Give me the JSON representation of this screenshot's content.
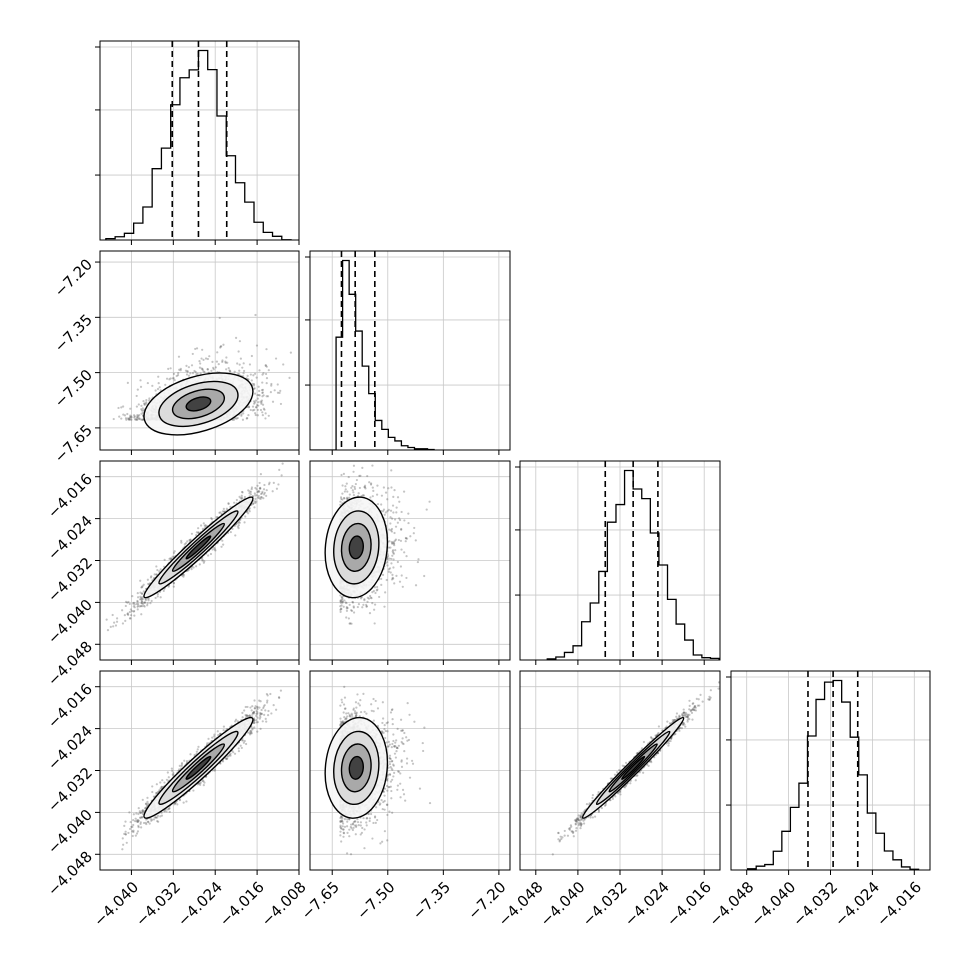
{
  "chart_data": {
    "type": "corner",
    "parameters": 4,
    "grid": true,
    "line_color": "#000000",
    "point_color": "#555555",
    "quantile_line_style": "dashed",
    "axes": [
      {
        "range": [
          -4.046,
          -4.008
        ],
        "ticks": [
          -4.04,
          -4.032,
          -4.024,
          -4.016,
          -4.008
        ],
        "tick_labels": [
          "−4.040",
          "−4.032",
          "−4.024",
          "−4.016",
          "−4.008"
        ]
      },
      {
        "range": [
          -7.71,
          -7.17
        ],
        "ticks": [
          -7.65,
          -7.5,
          -7.35,
          -7.2
        ],
        "tick_labels": [
          "−7.65",
          "−7.50",
          "−7.35",
          "−7.20"
        ]
      },
      {
        "range": [
          -4.051,
          -4.013
        ],
        "ticks": [
          -4.048,
          -4.04,
          -4.032,
          -4.024,
          -4.016
        ],
        "tick_labels": [
          "−4.048",
          "−4.040",
          "−4.032",
          "−4.024",
          "−4.016"
        ]
      },
      {
        "range": [
          -4.051,
          -4.013
        ],
        "ticks": [
          -4.048,
          -4.04,
          -4.032,
          -4.024,
          -4.016
        ],
        "tick_labels": [
          "−4.048",
          "−4.040",
          "−4.032",
          "−4.024",
          "−4.016"
        ]
      }
    ],
    "histograms": [
      {
        "param": 0,
        "mean": -4.0272,
        "sd": 0.0052,
        "quantiles": [
          -4.0322,
          -4.0272,
          -4.0218
        ]
      },
      {
        "param": 1,
        "mean": -7.585,
        "sd": 0.042,
        "skew": "right",
        "quantiles": [
          -7.625,
          -7.588,
          -7.535
        ]
      },
      {
        "param": 2,
        "mean": -4.0295,
        "sd": 0.0048,
        "quantiles": [
          -4.0348,
          -4.0295,
          -4.0248
        ]
      },
      {
        "param": 3,
        "mean": -4.0315,
        "sd": 0.0048,
        "quantiles": [
          -4.0363,
          -4.0315,
          -4.0268
        ]
      }
    ],
    "scatter_panels": [
      {
        "x_param": 0,
        "y_param": 1,
        "mean_x": -4.0272,
        "mean_y": -7.585,
        "sd_x": 0.0052,
        "sd_y": 0.042,
        "correlation": 0.4
      },
      {
        "x_param": 0,
        "y_param": 2,
        "mean_x": -4.0272,
        "mean_y": -4.0295,
        "sd_x": 0.0052,
        "sd_y": 0.0048,
        "correlation": 0.97
      },
      {
        "x_param": 1,
        "y_param": 2,
        "mean_x": -7.585,
        "mean_y": -4.0295,
        "sd_x": 0.042,
        "sd_y": 0.0048,
        "correlation": 0.1
      },
      {
        "x_param": 0,
        "y_param": 3,
        "mean_x": -4.0272,
        "mean_y": -4.0315,
        "sd_x": 0.0052,
        "sd_y": 0.0048,
        "correlation": 0.96
      },
      {
        "x_param": 1,
        "y_param": 3,
        "mean_x": -7.585,
        "mean_y": -4.0315,
        "sd_x": 0.042,
        "sd_y": 0.0048,
        "correlation": 0.1
      },
      {
        "x_param": 2,
        "y_param": 3,
        "mean_x": -4.0295,
        "mean_y": -4.0315,
        "sd_x": 0.0048,
        "sd_y": 0.0048,
        "correlation": 0.985
      }
    ]
  }
}
